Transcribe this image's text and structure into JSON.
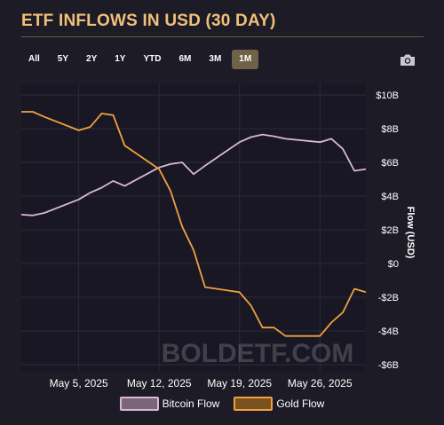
{
  "title": "ETF INFLOWS IN USD (30 DAY)",
  "ranges": [
    "All",
    "5Y",
    "2Y",
    "1Y",
    "YTD",
    "6M",
    "3M",
    "1M"
  ],
  "active_range": "1M",
  "watermark": "BOLDETF.COM",
  "colors": {
    "title": "#f1c07a",
    "bitcoin": "#d8b8d4",
    "gold": "#f0a042",
    "background": "#1c1b26",
    "grid": "#3a3a4a"
  },
  "chart_data": {
    "type": "line",
    "ylabel": "Flow (USD)",
    "ylim": [
      -6,
      10
    ],
    "yticks": [
      10,
      8,
      6,
      4,
      2,
      0,
      -2,
      -4,
      -6
    ],
    "ytick_labels": [
      "$10B",
      "$8B",
      "$6B",
      "$4B",
      "$2B",
      "$0",
      "-$2B",
      "-$4B",
      "-$6B"
    ],
    "xlim": [
      "2025-04-30",
      "2025-05-30"
    ],
    "xticks": [
      "2025-05-05",
      "2025-05-12",
      "2025-05-19",
      "2025-05-26"
    ],
    "xtick_labels": [
      "May 5, 2025",
      "May 12, 2025",
      "May 19, 2025",
      "May 26, 2025"
    ],
    "x": [
      "2025-04-30",
      "2025-05-01",
      "2025-05-02",
      "2025-05-05",
      "2025-05-06",
      "2025-05-07",
      "2025-05-08",
      "2025-05-09",
      "2025-05-12",
      "2025-05-13",
      "2025-05-14",
      "2025-05-15",
      "2025-05-16",
      "2025-05-19",
      "2025-05-20",
      "2025-05-21",
      "2025-05-22",
      "2025-05-23",
      "2025-05-26",
      "2025-05-27",
      "2025-05-28",
      "2025-05-29",
      "2025-05-30"
    ],
    "series": [
      {
        "name": "Bitcoin Flow",
        "values": [
          2.9,
          2.85,
          3.0,
          3.8,
          4.2,
          4.5,
          4.9,
          4.6,
          5.7,
          5.9,
          6.0,
          5.3,
          5.8,
          7.2,
          7.5,
          7.65,
          7.55,
          7.4,
          7.2,
          7.4,
          6.8,
          5.5,
          5.6
        ]
      },
      {
        "name": "Gold Flow",
        "values": [
          9.0,
          9.0,
          8.7,
          7.9,
          8.1,
          8.9,
          8.8,
          7.0,
          5.6,
          4.3,
          2.2,
          0.8,
          -1.4,
          -1.7,
          -2.5,
          -3.8,
          -3.8,
          -4.3,
          -4.3,
          -3.5,
          -2.9,
          -1.5,
          -1.7
        ]
      }
    ],
    "grid": true,
    "legend_position": "bottom"
  }
}
